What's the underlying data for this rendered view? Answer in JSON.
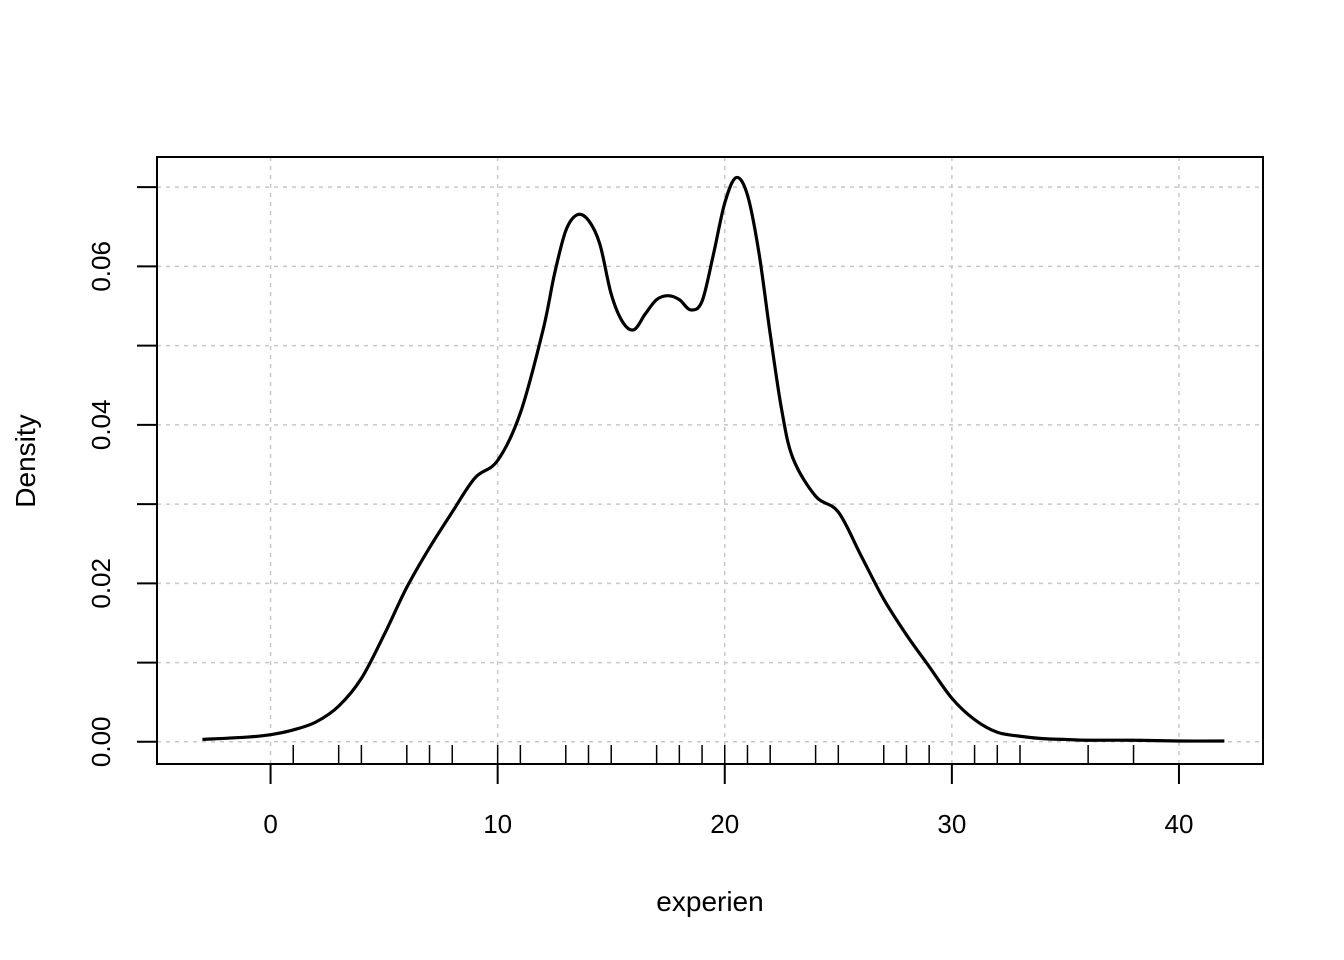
{
  "chart_data": {
    "type": "line",
    "title": "",
    "xlabel": "experien",
    "ylabel": "Density",
    "xlim": [
      -5,
      43.7
    ],
    "ylim": [
      -0.0028,
      0.0738
    ],
    "xticks": [
      0,
      10,
      20,
      30,
      40
    ],
    "xtick_labels": [
      "0",
      "10",
      "20",
      "30",
      "40"
    ],
    "yticks": [
      0,
      0.01,
      0.02,
      0.03,
      0.04,
      0.05,
      0.06,
      0.07
    ],
    "ytick_labels": [
      "0.00",
      "",
      "0.02",
      "",
      "0.04",
      "",
      "0.06",
      ""
    ],
    "grid": true,
    "grid_x": [
      0,
      10,
      20,
      30,
      40
    ],
    "grid_y": [
      0,
      0.01,
      0.02,
      0.03,
      0.04,
      0.05,
      0.06,
      0.07
    ],
    "series": [
      {
        "x": [
          -3,
          -1,
          0,
          1,
          2,
          3,
          4,
          5,
          6,
          7,
          8,
          9,
          10,
          11,
          12,
          12.5,
          13,
          13.5,
          14,
          14.5,
          15,
          15.5,
          16,
          16.5,
          17,
          17.5,
          18,
          18.5,
          19,
          19.5,
          20,
          20.5,
          21,
          21.5,
          22,
          22.5,
          23,
          24,
          25,
          26,
          27,
          28,
          29,
          30,
          31,
          32,
          33,
          34,
          35,
          36,
          38,
          40,
          42
        ],
        "values": [
          0.0003,
          0.0006,
          0.0009,
          0.0015,
          0.0025,
          0.0045,
          0.008,
          0.0135,
          0.0195,
          0.0245,
          0.029,
          0.0333,
          0.0355,
          0.0415,
          0.052,
          0.059,
          0.0645,
          0.0665,
          0.0658,
          0.0628,
          0.0565,
          0.053,
          0.052,
          0.054,
          0.0558,
          0.0563,
          0.0558,
          0.0545,
          0.0556,
          0.0615,
          0.068,
          0.0712,
          0.069,
          0.0618,
          0.0515,
          0.042,
          0.0358,
          0.031,
          0.029,
          0.0235,
          0.018,
          0.0135,
          0.0095,
          0.0055,
          0.0028,
          0.0012,
          0.0007,
          0.0004,
          0.0003,
          0.0002,
          0.0002,
          0.0001,
          0.0001
        ]
      }
    ],
    "rug": [
      1,
      3,
      4,
      6,
      7,
      8,
      10,
      11,
      13,
      14,
      15,
      17,
      18,
      19,
      20,
      21,
      22,
      24,
      25,
      27,
      28,
      29,
      31,
      32,
      33,
      36,
      38
    ],
    "colors": {
      "line": "#000000",
      "grid": "#c8c8c8",
      "axis": "#000000"
    }
  }
}
